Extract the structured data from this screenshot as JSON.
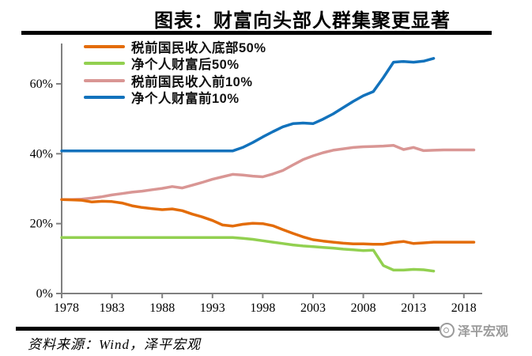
{
  "title": "图表：财富向头部人群集聚更显著",
  "footer": {
    "source": "资料来源：Wind，泽平宏观",
    "watermark": "泽平宏观"
  },
  "chart_data": {
    "type": "line",
    "title": "图表：财富向头部人群集聚更显著",
    "xlabel": "",
    "ylabel": "",
    "x_range": [
      1978,
      2020
    ],
    "y_range": [
      0,
      68
    ],
    "grid": false,
    "legend_position": "top-left",
    "axis_color": "#808080",
    "x_ticks": [
      "1978",
      "1983",
      "1988",
      "1993",
      "1998",
      "2003",
      "2008",
      "2013",
      "2018"
    ],
    "x_tick_years": [
      1978,
      1983,
      1988,
      1993,
      1998,
      2003,
      2008,
      2013,
      2018
    ],
    "y_ticks": [
      "0%",
      "20%",
      "40%",
      "60%"
    ],
    "y_tick_values": [
      0,
      20,
      40,
      60
    ],
    "unit": "% share",
    "series": [
      {
        "name": "税前国民收入底部50%",
        "color": "#E36C09",
        "start_year": 1978,
        "values": [
          26.9,
          26.8,
          26.7,
          26.2,
          26.4,
          26.3,
          25.9,
          25.1,
          24.6,
          24.3,
          24.0,
          24.2,
          23.7,
          22.7,
          21.9,
          20.9,
          19.6,
          19.3,
          19.8,
          20.1,
          20.0,
          19.4,
          18.3,
          17.2,
          16.2,
          15.4,
          15.0,
          14.7,
          14.4,
          14.2,
          14.2,
          14.1,
          14.1,
          14.6,
          14.9,
          14.3,
          14.5,
          14.7,
          14.7,
          14.7,
          14.7,
          14.7
        ]
      },
      {
        "name": "净个人财富后50%",
        "color": "#92D050",
        "start_year": 1978,
        "values": [
          16.0,
          16.0,
          16.0,
          16.0,
          16.0,
          16.0,
          16.0,
          16.0,
          16.0,
          16.0,
          16.0,
          16.0,
          16.0,
          16.0,
          16.0,
          16.0,
          16.0,
          16.0,
          15.8,
          15.5,
          15.1,
          14.7,
          14.3,
          13.9,
          13.6,
          13.4,
          13.2,
          13.0,
          12.7,
          12.5,
          12.3,
          12.4,
          8.0,
          6.7,
          6.7,
          6.9,
          6.8,
          6.4
        ]
      },
      {
        "name": "税前国民收入前10%",
        "color": "#D99694",
        "start_year": 1978,
        "values": [
          26.9,
          26.9,
          27.0,
          27.3,
          27.7,
          28.2,
          28.6,
          29.0,
          29.3,
          29.7,
          30.1,
          30.6,
          30.2,
          31.0,
          31.8,
          32.7,
          33.4,
          34.1,
          33.9,
          33.6,
          33.4,
          34.2,
          35.2,
          36.8,
          38.3,
          39.4,
          40.3,
          41.0,
          41.4,
          41.8,
          42.0,
          42.1,
          42.2,
          42.4,
          41.2,
          41.8,
          40.9,
          41.0,
          41.1,
          41.1,
          41.1,
          41.1
        ]
      },
      {
        "name": "净个人财富前10%",
        "color": "#1272BC",
        "start_year": 1978,
        "values": [
          40.8,
          40.8,
          40.8,
          40.8,
          40.8,
          40.8,
          40.8,
          40.8,
          40.8,
          40.8,
          40.8,
          40.8,
          40.8,
          40.8,
          40.8,
          40.8,
          40.8,
          40.8,
          41.8,
          43.2,
          44.8,
          46.3,
          47.7,
          48.6,
          48.8,
          48.6,
          49.9,
          51.4,
          53.2,
          55.0,
          56.6,
          57.8,
          61.8,
          66.2,
          66.4,
          66.2,
          66.5,
          67.3
        ]
      }
    ]
  }
}
